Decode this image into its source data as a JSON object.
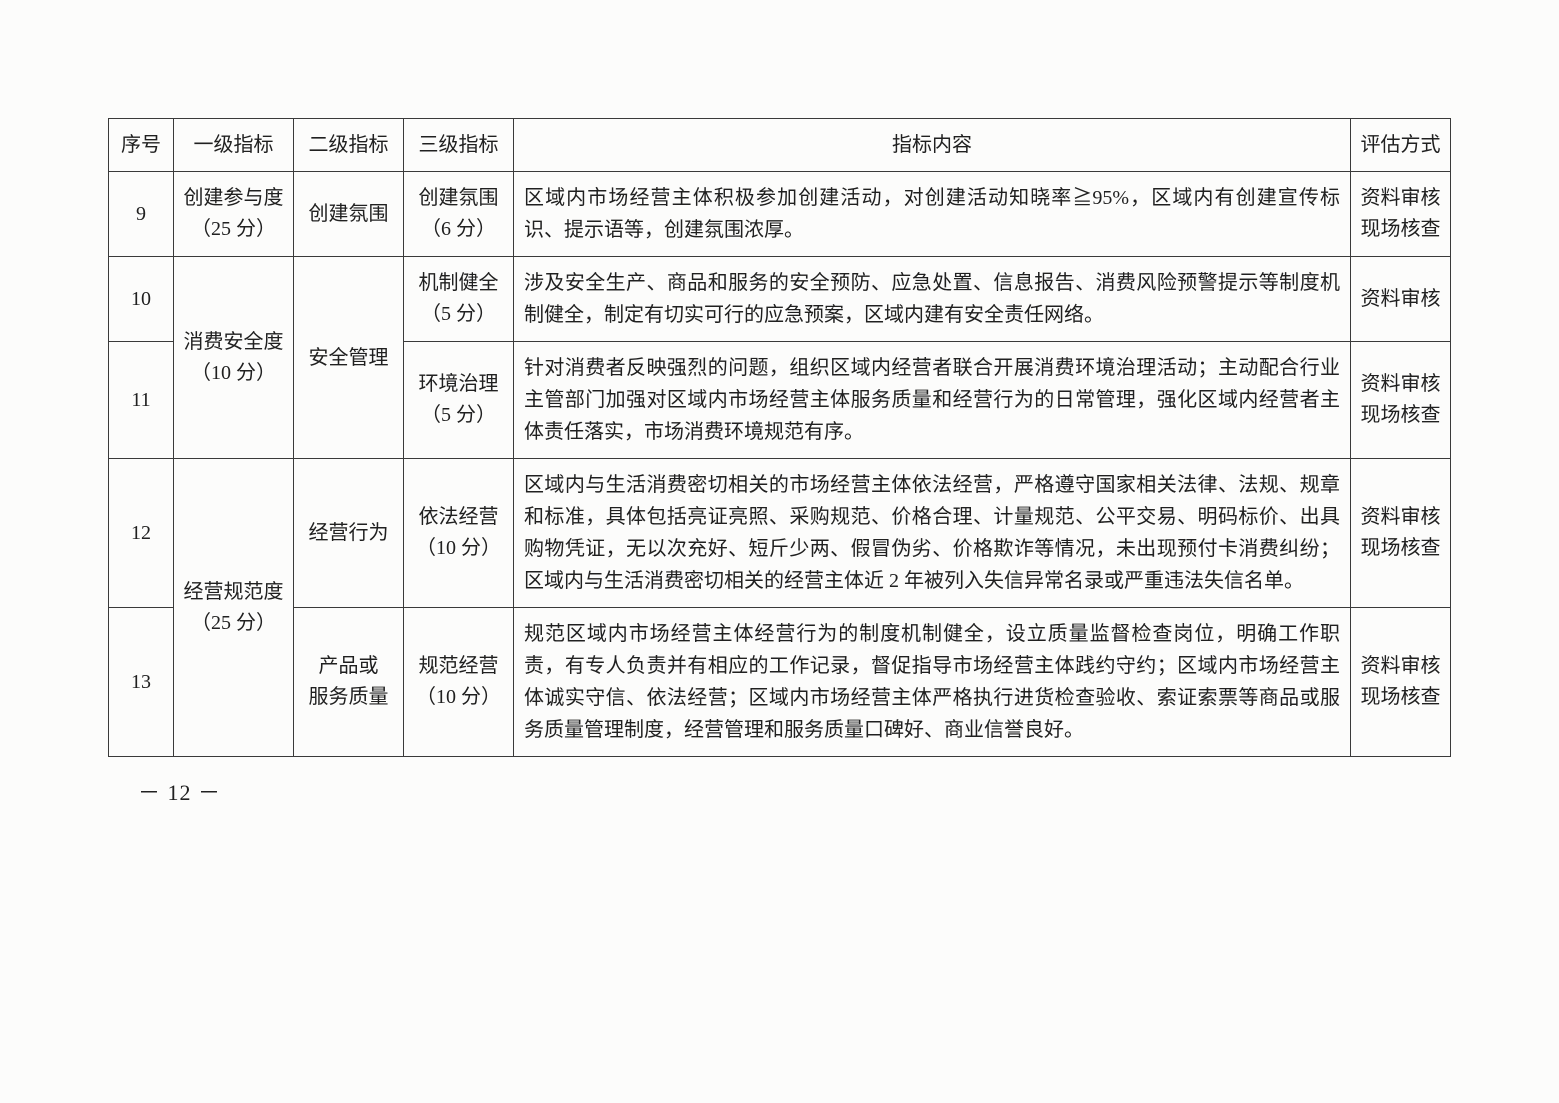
{
  "headers": {
    "seq": "序号",
    "level1": "一级指标",
    "level2": "二级指标",
    "level3": "三级指标",
    "content": "指标内容",
    "method": "评估方式"
  },
  "rows": {
    "r9": {
      "seq": "9",
      "level1_line1": "创建参与度",
      "level1_line2": "（25 分）",
      "level2": "创建氛围",
      "level3_line1": "创建氛围",
      "level3_line2": "（6 分）",
      "content": "区域内市场经营主体积极参加创建活动，对创建活动知晓率≧95%，区域内有创建宣传标识、提示语等，创建氛围浓厚。",
      "method_line1": "资料审核",
      "method_line2": "现场核查"
    },
    "r10": {
      "seq": "10",
      "level1_line1": "消费安全度",
      "level1_line2": "（10 分）",
      "level2": "安全管理",
      "level3_line1": "机制健全",
      "level3_line2": "（5 分）",
      "content": "涉及安全生产、商品和服务的安全预防、应急处置、信息报告、消费风险预警提示等制度机制健全，制定有切实可行的应急预案，区域内建有安全责任网络。",
      "method": "资料审核"
    },
    "r11": {
      "seq": "11",
      "level3_line1": "环境治理",
      "level3_line2": "（5 分）",
      "content": "针对消费者反映强烈的问题，组织区域内经营者联合开展消费环境治理活动；主动配合行业主管部门加强对区域内市场经营主体服务质量和经营行为的日常管理，强化区域内经营者主体责任落实，市场消费环境规范有序。",
      "method_line1": "资料审核",
      "method_line2": "现场核查"
    },
    "r12": {
      "seq": "12",
      "level1_line1": "经营规范度",
      "level1_line2": "（25 分）",
      "level2": "经营行为",
      "level3_line1": "依法经营",
      "level3_line2": "（10 分）",
      "content": "区域内与生活消费密切相关的市场经营主体依法经营，严格遵守国家相关法律、法规、规章和标准，具体包括亮证亮照、采购规范、价格合理、计量规范、公平交易、明码标价、出具购物凭证，无以次充好、短斤少两、假冒伪劣、价格欺诈等情况，未出现预付卡消费纠纷；区域内与生活消费密切相关的经营主体近 2 年被列入失信异常名录或严重违法失信名单。",
      "method_line1": "资料审核",
      "method_line2": "现场核查"
    },
    "r13": {
      "seq": "13",
      "level2_line1": "产品或",
      "level2_line2": "服务质量",
      "level3_line1": "规范经营",
      "level3_line2": "（10 分）",
      "content": "规范区域内市场经营主体经营行为的制度机制健全，设立质量监督检查岗位，明确工作职责，有专人负责并有相应的工作记录，督促指导市场经营主体践约守约；区域内市场经营主体诚实守信、依法经营；区域内市场经营主体严格执行进货检查验收、索证索票等商品或服务质量管理制度，经营管理和服务质量口碑好、商业信誉良好。",
      "method_line1": "资料审核",
      "method_line2": "现场核查"
    }
  },
  "page_number": "－ 12 －"
}
